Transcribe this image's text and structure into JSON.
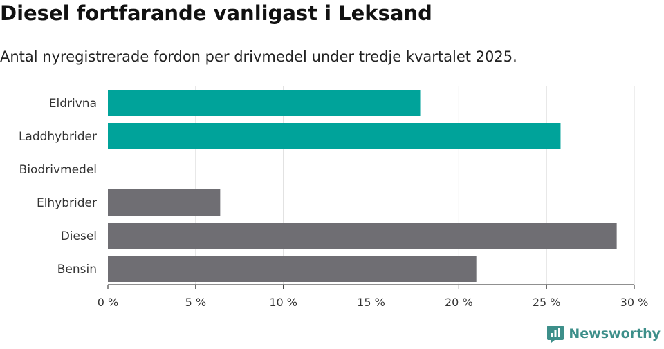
{
  "header": {
    "title": "Diesel fortfarande vanligast i Leksand",
    "subtitle": "Antal nyregistrerade fordon per drivmedel under tredje kvartalet 2025."
  },
  "brand": {
    "name": "Newsworthy",
    "icon": "newsworthy-logo-icon"
  },
  "colors": {
    "electric": "#00a39a",
    "fossil": "#6f6e73",
    "grid": "#dddddd",
    "axis": "#222222"
  },
  "chart_data": {
    "type": "bar",
    "orientation": "horizontal",
    "categories": [
      "Eldrivna",
      "Laddhybrider",
      "Biodrivmedel",
      "Elhybrider",
      "Diesel",
      "Bensin"
    ],
    "values": [
      17.8,
      25.8,
      0,
      6.4,
      29.0,
      21.0
    ],
    "groups": [
      "electric",
      "electric",
      "electric",
      "fossil",
      "fossil",
      "fossil"
    ],
    "xlim": [
      0,
      30
    ],
    "xticks": [
      0,
      5,
      10,
      15,
      20,
      25,
      30
    ],
    "xtick_labels": [
      "0 %",
      "5 %",
      "10 %",
      "15 %",
      "20 %",
      "25 %",
      "30 %"
    ],
    "xlabel": "",
    "ylabel": "",
    "grid": true
  }
}
